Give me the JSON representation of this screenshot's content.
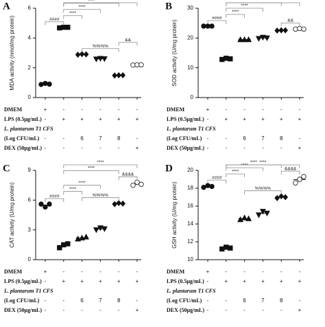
{
  "chart_data": [
    {
      "type": "dot",
      "panel": "A",
      "y_label": "MDA activity (nmol/mg protein)",
      "ylim": [
        0,
        6
      ],
      "yticks": [
        0,
        2,
        4,
        6
      ],
      "categories": [
        null,
        null,
        null,
        null,
        null,
        null
      ],
      "markers": [
        "circle",
        "square",
        "diamond",
        "triangle-down",
        "diamond",
        "circle-open"
      ],
      "values": [
        [
          0.88,
          0.95,
          0.9
        ],
        [
          4.68,
          4.72,
          4.72
        ],
        [
          2.88,
          2.92,
          2.9
        ],
        [
          2.58,
          2.62,
          2.6
        ],
        [
          1.48,
          1.5,
          1.5
        ],
        [
          2.18,
          2.2,
          2.2
        ]
      ],
      "annotations": [
        {
          "groups": [
            0,
            1
          ],
          "label": "####"
        },
        {
          "groups": [
            2,
            4
          ],
          "label": "%%%%"
        },
        {
          "groups": [
            4,
            5
          ],
          "label": "&&"
        },
        {
          "groups": [
            1,
            2
          ],
          "label": "****"
        },
        {
          "groups": [
            1,
            3
          ],
          "label": "****"
        },
        {
          "groups": [
            1,
            4
          ],
          "label": "****"
        },
        {
          "groups": [
            1,
            5
          ],
          "label": "****"
        }
      ],
      "treatments": [
        {
          "label": "DMEM",
          "cells": [
            "+",
            "-",
            "-",
            "-",
            "-",
            "-"
          ]
        },
        {
          "label": "LPS (0.5μg/mL)",
          "cells": [
            "-",
            "+",
            "+",
            "+",
            "+",
            "+"
          ]
        },
        {
          "label": "L. plantarum T1 CFS",
          "cells": []
        },
        {
          "label": "(Log CFU/mL)",
          "cells": [
            "-",
            "-",
            "6",
            "7",
            "8",
            "-"
          ]
        },
        {
          "label": "DEX (50μg/mL)",
          "cells": [
            "-",
            "-",
            "-",
            "-",
            "-",
            "+"
          ]
        }
      ]
    },
    {
      "type": "dot",
      "panel": "B",
      "y_label": "SOD activity (U/mg protein)",
      "ylim": [
        0,
        30
      ],
      "yticks": [
        0,
        10,
        20,
        30
      ],
      "categories": [
        null,
        null,
        null,
        null,
        null,
        null
      ],
      "markers": [
        "circle",
        "square",
        "triangle-up",
        "triangle-down",
        "diamond",
        "circle-open"
      ],
      "values": [
        [
          24,
          24,
          24
        ],
        [
          12.8,
          13.2,
          13
        ],
        [
          19.5,
          19.5,
          19.5
        ],
        [
          19.8,
          20.2,
          20
        ],
        [
          22.5,
          22.6,
          22.6
        ],
        [
          23,
          23.2,
          23
        ]
      ],
      "annotations": [
        {
          "groups": [
            0,
            1
          ],
          "label": "####"
        },
        {
          "groups": [
            4,
            5
          ],
          "label": "&&"
        },
        {
          "groups": [
            1,
            2
          ],
          "label": "****"
        },
        {
          "groups": [
            1,
            3
          ],
          "label": "****"
        },
        {
          "groups": [
            1,
            4
          ],
          "label": "****"
        },
        {
          "groups": [
            1,
            5
          ],
          "label": "****"
        }
      ],
      "treatments": [
        {
          "label": "DMEM",
          "cells": [
            "+",
            "-",
            "-",
            "-",
            "-",
            "-"
          ]
        },
        {
          "label": "LPS (0.5μg/mL)",
          "cells": [
            "-",
            "+",
            "+",
            "+",
            "+",
            "+"
          ]
        },
        {
          "label": "L. plantarum T1 CFS",
          "cells": []
        },
        {
          "label": "(Log CFU/mL)",
          "cells": [
            "-",
            "-",
            "6",
            "7",
            "8",
            "-"
          ]
        },
        {
          "label": "DEX (50μg/mL)",
          "cells": [
            "-",
            "-",
            "-",
            "-",
            "-",
            "+"
          ]
        }
      ]
    },
    {
      "type": "dot",
      "panel": "C",
      "y_label": "CAT activity (U/mg protein)",
      "ylim": [
        0,
        9
      ],
      "yticks": [
        0,
        3,
        6,
        9
      ],
      "categories": [
        null,
        null,
        null,
        null,
        null,
        null
      ],
      "markers": [
        "circle",
        "square",
        "triangle-up",
        "triangle-down",
        "diamond",
        "circle-open"
      ],
      "values": [
        [
          5.6,
          5.3,
          5.6
        ],
        [
          1.2,
          1.5,
          1.6
        ],
        [
          2.1,
          2.2,
          2.3
        ],
        [
          3.0,
          3.2,
          3.1
        ],
        [
          5.6,
          5.7,
          5.65
        ],
        [
          7.5,
          7.8,
          7.6
        ]
      ],
      "annotations": [
        {
          "groups": [
            0,
            1
          ],
          "label": "####"
        },
        {
          "groups": [
            2,
            4
          ],
          "label": "%%%%"
        },
        {
          "groups": [
            4,
            5
          ],
          "label": "&&&&"
        },
        {
          "groups": [
            1,
            2
          ],
          "label": "****"
        },
        {
          "groups": [
            1,
            3
          ],
          "label": "****"
        },
        {
          "groups": [
            1,
            4
          ],
          "label": "****"
        },
        {
          "groups": [
            1,
            5
          ],
          "label": "****"
        }
      ],
      "treatments": [
        {
          "label": "DMEM",
          "cells": [
            "+",
            "-",
            "-",
            "-",
            "-",
            "-"
          ]
        },
        {
          "label": "LPS (0.5μg/mL)",
          "cells": [
            "-",
            "+",
            "+",
            "+",
            "+",
            "+"
          ]
        },
        {
          "label": "L. plantarum T1 CFS",
          "cells": []
        },
        {
          "label": "(Log CFU/mL)",
          "cells": [
            "-",
            "-",
            "6",
            "7",
            "8",
            "-"
          ]
        },
        {
          "label": "DEX (50μg/mL)",
          "cells": [
            "-",
            "-",
            "-",
            "-",
            "-",
            "+"
          ]
        }
      ]
    },
    {
      "type": "dot",
      "panel": "D",
      "y_label": "GSH activity (U/mg protein)",
      "ylim": [
        10,
        20
      ],
      "yticks": [
        10,
        12,
        14,
        16,
        18,
        20
      ],
      "categories": [
        null,
        null,
        null,
        null,
        null,
        null
      ],
      "markers": [
        "circle",
        "square",
        "triangle-up",
        "triangle-down",
        "diamond",
        "circle-open"
      ],
      "values": [
        [
          18.1,
          18.3,
          18.2
        ],
        [
          11.2,
          11.4,
          11.3
        ],
        [
          14.5,
          14.7,
          14.6
        ],
        [
          15.0,
          15.4,
          15.2
        ],
        [
          16.9,
          17.1,
          17.0
        ],
        [
          18.6,
          19.0,
          19.3
        ]
      ],
      "annotations": [
        {
          "groups": [
            0,
            1
          ],
          "label": "####"
        },
        {
          "groups": [
            2,
            4
          ],
          "label": "%%%%"
        },
        {
          "groups": [
            4,
            5
          ],
          "label": "&&&&"
        },
        {
          "groups": [
            1,
            2
          ],
          "label": "****"
        },
        {
          "groups": [
            1,
            3
          ],
          "label": "****"
        },
        {
          "groups": [
            1,
            4
          ],
          "label": "****"
        },
        {
          "groups": [
            1,
            5
          ],
          "label": "****"
        }
      ],
      "treatments": [
        {
          "label": "DMEM",
          "cells": [
            "+",
            "-",
            "-",
            "-",
            "-",
            "-"
          ]
        },
        {
          "label": "LPS (0.5μg/mL)",
          "cells": [
            "-",
            "+",
            "+",
            "+",
            "+",
            "+"
          ]
        },
        {
          "label": "L. plantarum T1 CFS",
          "cells": []
        },
        {
          "label": "(Log CFU/mL)",
          "cells": [
            "-",
            "-",
            "6",
            "7",
            "8",
            "-"
          ]
        },
        {
          "label": "DEX (50μg/mL)",
          "cells": [
            "-",
            "-",
            "-",
            "-",
            "-",
            "+"
          ]
        }
      ]
    }
  ]
}
